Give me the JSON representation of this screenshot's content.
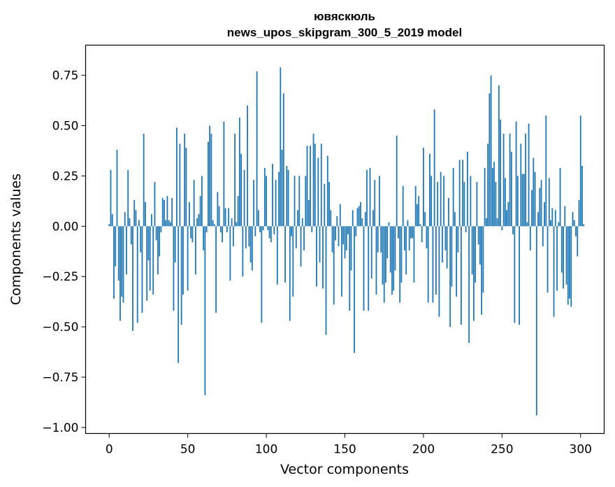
{
  "chart_data": {
    "type": "bar",
    "title_line1": "ювяскюль",
    "title_line2": "news_upos_skipgram_300_5_2019 model",
    "xlabel": "Vector components",
    "ylabel": "Components values",
    "xlim": [
      -15,
      315
    ],
    "ylim": [
      -1.03,
      0.9
    ],
    "x_ticks": [
      0,
      50,
      100,
      150,
      200,
      250,
      300
    ],
    "x_tick_labels": [
      "0",
      "50",
      "100",
      "150",
      "200",
      "250",
      "300"
    ],
    "y_ticks": [
      0.75,
      0.5,
      0.25,
      0.0,
      -0.25,
      -0.5,
      -0.75,
      -1.0
    ],
    "y_tick_labels": [
      "0.75",
      "0.50",
      "0.25",
      "0.00",
      "−0.25",
      "−0.50",
      "−0.75",
      "−1.00"
    ],
    "bar_color": "#1f77b4",
    "values": [
      0.01,
      0.28,
      0.06,
      -0.36,
      -0.2,
      0.38,
      -0.27,
      -0.47,
      -0.35,
      -0.38,
      0.07,
      -0.24,
      0.28,
      0.04,
      -0.09,
      -0.52,
      0.13,
      0.08,
      -0.48,
      0.03,
      -0.13,
      -0.43,
      0.46,
      0.12,
      -0.37,
      -0.17,
      -0.32,
      0.06,
      -0.34,
      0.22,
      -0.07,
      -0.24,
      -0.15,
      -0.03,
      0.14,
      0.13,
      0.03,
      0.15,
      0.03,
      0.02,
      0.14,
      -0.42,
      -0.18,
      0.49,
      -0.68,
      0.41,
      -0.49,
      -0.34,
      0.46,
      0.39,
      -0.32,
      0.12,
      -0.06,
      -0.08,
      0.23,
      -0.24,
      0.04,
      0.06,
      0.15,
      0.25,
      -0.12,
      -0.84,
      -0.03,
      0.42,
      0.5,
      0.46,
      0.03,
      0.01,
      -0.43,
      0.17,
      0.1,
      -0.03,
      -0.08,
      0.52,
      0.09,
      -0.03,
      0.09,
      -0.27,
      0.04,
      -0.1,
      0.46,
      0.02,
      0.15,
      0.54,
      0.36,
      -0.25,
      0.28,
      -0.11,
      0.6,
      -0.1,
      -0.18,
      -0.22,
      0.23,
      -0.05,
      0.77,
      0.08,
      -0.03,
      -0.48,
      -0.02,
      0.29,
      0.25,
      -0.02,
      -0.06,
      -0.08,
      0.31,
      -0.04,
      0.23,
      -0.29,
      0.27,
      0.79,
      0.38,
      0.66,
      -0.28,
      0.3,
      0.28,
      -0.47,
      -0.05,
      -0.35,
      0.25,
      -0.11,
      0.08,
      0.25,
      -0.2,
      0.04,
      -0.12,
      0.25,
      0.4,
      0.13,
      0.4,
      -0.03,
      0.46,
      0.41,
      -0.3,
      0.34,
      -0.18,
      0.41,
      -0.31,
      0.21,
      -0.54,
      0.35,
      0.22,
      0.08,
      -0.13,
      -0.39,
      -0.07,
      0.05,
      -0.1,
      0.11,
      -0.35,
      -0.09,
      -0.16,
      -0.12,
      -0.04,
      -0.42,
      -0.22,
      0.08,
      -0.63,
      -0.05,
      0.09,
      0.1,
      0.12,
      0.04,
      -0.42,
      0.07,
      0.28,
      -0.42,
      0.29,
      -0.26,
      0.08,
      0.23,
      -0.34,
      -0.13,
      0.25,
      -0.13,
      -0.29,
      -0.38,
      -0.28,
      -0.16,
      0.02,
      -0.23,
      -0.34,
      -0.32,
      -0.22,
      0.45,
      -0.06,
      -0.38,
      -0.28,
      0.2,
      -0.12,
      -0.24,
      0.03,
      -0.12,
      -0.06,
      -0.06,
      -0.28,
      0.2,
      0.11,
      0.15,
      0.01,
      -0.08,
      0.39,
      0.07,
      -0.11,
      -0.38,
      0.36,
      0.25,
      -0.38,
      0.58,
      -0.34,
      0.22,
      -0.45,
      0.27,
      -0.18,
      0.25,
      -0.12,
      -0.21,
      0.14,
      -0.5,
      -0.3,
      0.29,
      0.07,
      -0.35,
      -0.13,
      0.33,
      -0.49,
      0.33,
      0.22,
      -0.03,
      0.37,
      -0.58,
      0.25,
      -0.24,
      -0.47,
      -0.28,
      0.22,
      -0.09,
      -0.19,
      -0.44,
      -0.33,
      0.29,
      0.04,
      0.41,
      0.66,
      0.75,
      0.29,
      0.32,
      0.22,
      0.04,
      0.7,
      0.53,
      -0.02,
      0.46,
      0.24,
      0.08,
      0.12,
      0.46,
      0.37,
      -0.04,
      -0.48,
      0.52,
      0.25,
      -0.49,
      0.41,
      0.26,
      0.26,
      0.46,
      0.02,
      0.51,
      -0.12,
      0.18,
      0.34,
      0.27,
      -0.94,
      0.07,
      0.19,
      0.23,
      -0.1,
      0.12,
      0.55,
      -0.33,
      0.24,
      0.03,
      0.09,
      -0.45,
      0.08,
      -0.32,
      0.02,
      0.29,
      -0.23,
      -0.31,
      0.1,
      -0.29,
      -0.39,
      -0.36,
      -0.4,
      0.07,
      0.03,
      -0.05,
      -0.15,
      0.13,
      0.55,
      0.3,
      0.01
    ]
  }
}
